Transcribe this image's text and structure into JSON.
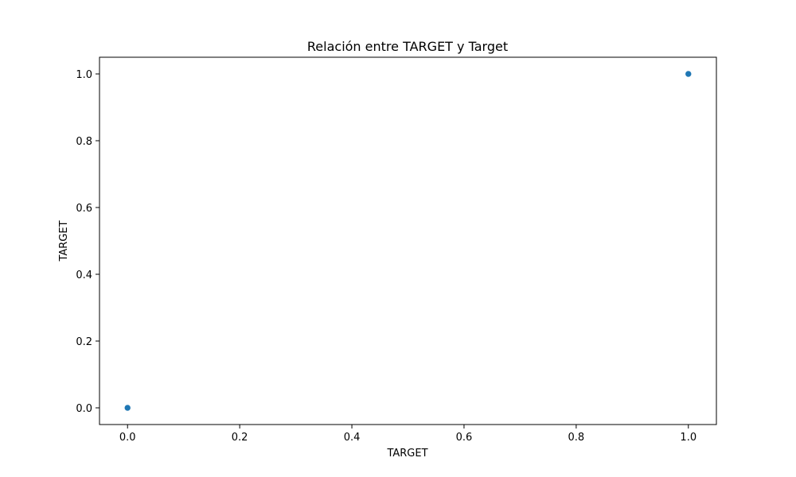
{
  "chart_data": {
    "type": "scatter",
    "title": "Relación entre TARGET y Target",
    "xlabel": "TARGET",
    "ylabel": "TARGET",
    "xlim": [
      -0.05,
      1.05
    ],
    "ylim": [
      -0.05,
      1.05
    ],
    "xticks": [
      0.0,
      0.2,
      0.4,
      0.6,
      0.8,
      1.0
    ],
    "yticks": [
      0.0,
      0.2,
      0.4,
      0.6,
      0.8,
      1.0
    ],
    "xtick_labels": [
      "0.0",
      "0.2",
      "0.4",
      "0.6",
      "0.8",
      "1.0"
    ],
    "ytick_labels": [
      "0.0",
      "0.2",
      "0.4",
      "0.6",
      "0.8",
      "1.0"
    ],
    "grid": false,
    "point_color": "#1f77b4",
    "points": [
      {
        "x": 0.0,
        "y": 0.0
      },
      {
        "x": 1.0,
        "y": 1.0
      }
    ]
  }
}
